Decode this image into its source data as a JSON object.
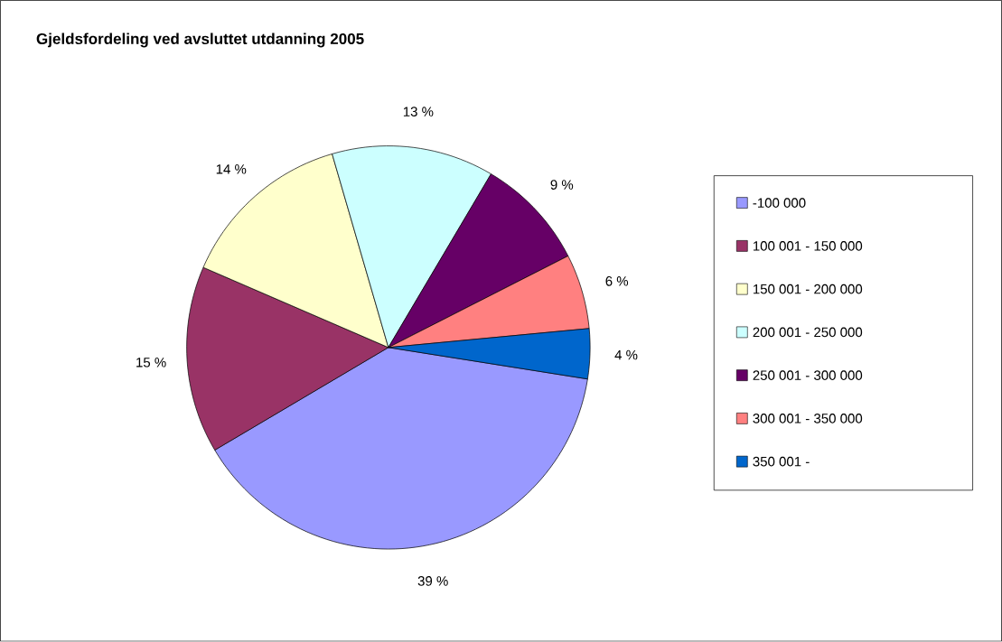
{
  "chart_data": {
    "type": "pie",
    "title": "Gjeldsfordeling ved avsluttet utdanning 2005",
    "categories": [
      "-100 000",
      "100 001 - 150 000",
      "150 001 - 200 000",
      "200 001 - 250 000",
      "250 001 - 300 000",
      "300 001 - 350 000",
      "350 001 -"
    ],
    "values": [
      39,
      15,
      14,
      13,
      9,
      6,
      4
    ],
    "value_labels": [
      "39 %",
      "15 %",
      "14 %",
      "13 %",
      "9 %",
      "6 %",
      "4 %"
    ],
    "colors": [
      "#9999ff",
      "#993366",
      "#ffffcc",
      "#ccffff",
      "#660066",
      "#ff8080",
      "#0066cc"
    ],
    "legend": "right"
  }
}
